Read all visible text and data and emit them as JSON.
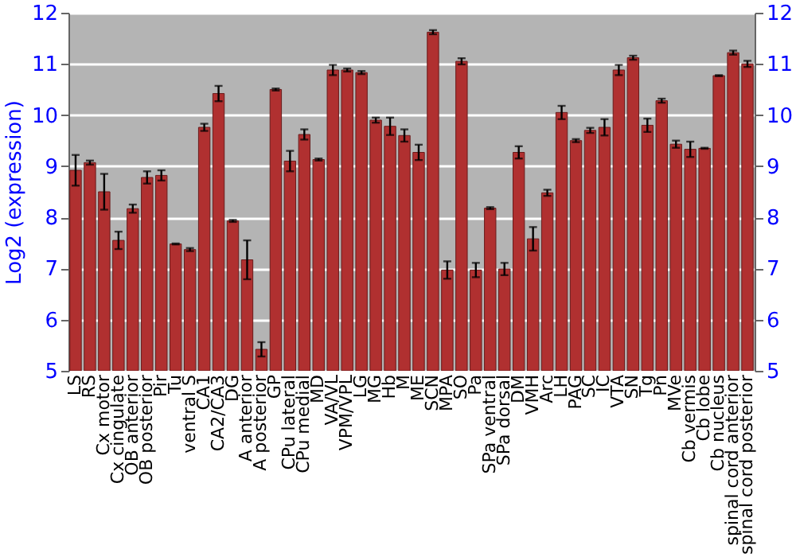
{
  "chart_data": {
    "type": "bar",
    "ylabel": "Log2 (expression)",
    "categories": [
      "LS",
      "RS",
      "Cx motor",
      "Cx cingulate",
      "OB anterior",
      "OB posterior",
      "Pir",
      "Tu",
      "ventral S",
      "CA1",
      "CA2/CA3",
      "DG",
      "A anterior",
      "A posterior",
      "GP",
      "CPu lateral",
      "CPu medial",
      "MD",
      "VA/VL",
      "VPM/VPL",
      "LG",
      "MG",
      "Hb",
      "M",
      "ME",
      "SCN",
      "MPA",
      "SO",
      "Pa",
      "SPa ventral",
      "SPa dorsal",
      "DM",
      "VMH",
      "Arc",
      "LH",
      "PAG",
      "SC",
      "IC",
      "VTA",
      "SN",
      "Tg",
      "Pn",
      "MVe",
      "Cb vermis",
      "Cb lobe",
      "Cb nucleus",
      "spinal cord anterior",
      "spinal cord posterior"
    ],
    "values": [
      8.92,
      9.07,
      8.5,
      7.55,
      8.17,
      8.78,
      8.82,
      7.48,
      7.37,
      9.76,
      10.42,
      7.93,
      7.17,
      5.42,
      10.5,
      9.1,
      9.62,
      9.13,
      10.88,
      10.88,
      10.83,
      9.9,
      9.78,
      9.6,
      9.27,
      11.62,
      6.97,
      11.05,
      6.97,
      8.18,
      6.99,
      9.27,
      7.58,
      8.48,
      10.05,
      9.5,
      9.7,
      9.76,
      10.88,
      11.12,
      9.8,
      10.28,
      9.43,
      9.33,
      9.35,
      10.77,
      11.22,
      11.0
    ],
    "errors": [
      0.3,
      0.04,
      0.35,
      0.17,
      0.08,
      0.12,
      0.1,
      0.01,
      0.03,
      0.07,
      0.15,
      0.02,
      0.38,
      0.14,
      0.02,
      0.2,
      0.1,
      0.02,
      0.1,
      0.03,
      0.03,
      0.05,
      0.17,
      0.12,
      0.15,
      0.04,
      0.17,
      0.06,
      0.14,
      0.02,
      0.12,
      0.12,
      0.23,
      0.06,
      0.13,
      0.03,
      0.05,
      0.16,
      0.1,
      0.04,
      0.13,
      0.04,
      0.07,
      0.15,
      0.01,
      0.01,
      0.04,
      0.06
    ],
    "color": "#b03030",
    "ylim": [
      5,
      12
    ],
    "yticks": [
      5,
      6,
      7,
      8,
      9,
      10,
      11,
      12
    ],
    "y2lim": [
      5,
      12
    ],
    "y2ticks": [
      5,
      6,
      7,
      8,
      9,
      10,
      11,
      12
    ],
    "grid": "y"
  }
}
